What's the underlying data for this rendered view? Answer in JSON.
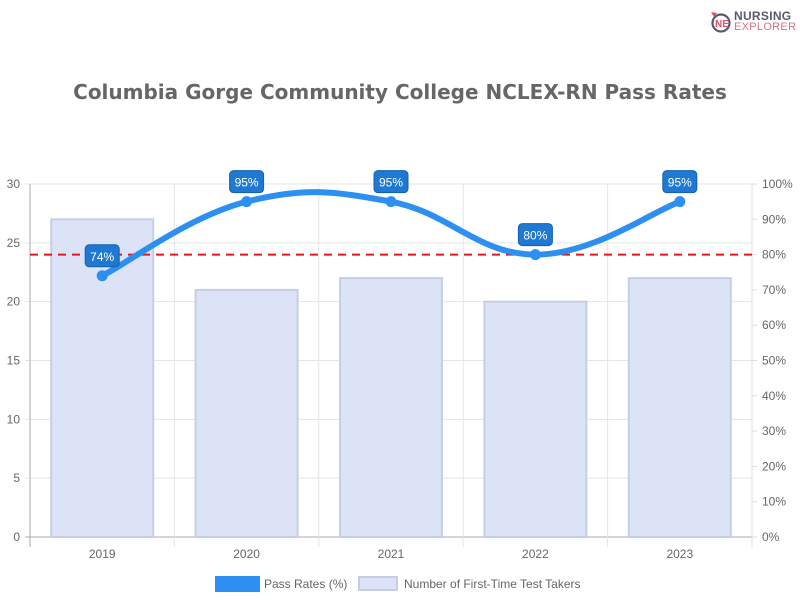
{
  "logo": {
    "line1": "NURSING",
    "line2": "EXPLORER"
  },
  "chart_data": {
    "type": "bar",
    "title": "Columbia Gorge Community College NCLEX-RN Pass Rates",
    "categories": [
      "2019",
      "2020",
      "2021",
      "2022",
      "2023"
    ],
    "series": [
      {
        "name": "Pass Rates (%)",
        "type": "line",
        "axis": "right",
        "values": [
          74,
          95,
          95,
          80,
          95
        ],
        "labels": [
          "74%",
          "95%",
          "95%",
          "80%",
          "95%"
        ],
        "color": "#2d8ff0"
      },
      {
        "name": "Number of First-Time Test Takers",
        "type": "bar",
        "axis": "left",
        "values": [
          27,
          21,
          22,
          20,
          22
        ],
        "color": "#dde3f7"
      }
    ],
    "reference_line": {
      "axis": "right",
      "value": 80,
      "color": "#e8141e",
      "style": "dashed"
    },
    "y_left": {
      "range": [
        0,
        30
      ],
      "ticks": [
        "0",
        "5",
        "10",
        "15",
        "20",
        "25",
        "30"
      ]
    },
    "y_right": {
      "range": [
        0,
        100
      ],
      "ticks": [
        "0%",
        "10%",
        "20%",
        "30%",
        "40%",
        "50%",
        "60%",
        "70%",
        "80%",
        "90%",
        "100%"
      ]
    },
    "grid": true,
    "legend": "bottom"
  }
}
